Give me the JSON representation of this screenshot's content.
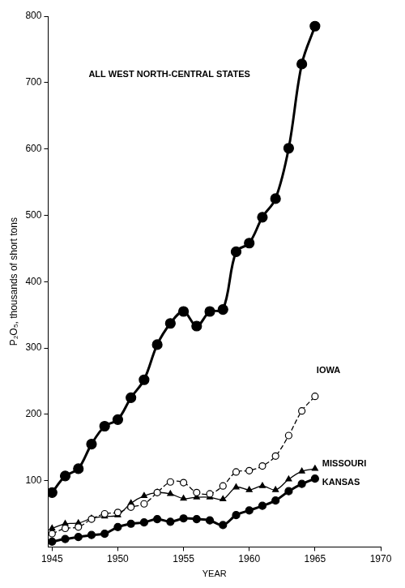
{
  "chart_data": {
    "type": "line",
    "x_label": "YEAR",
    "y_label": "P₂O₅, thousands of short tons",
    "x": [
      1945,
      1946,
      1947,
      1948,
      1949,
      1950,
      1951,
      1952,
      1953,
      1954,
      1955,
      1956,
      1957,
      1958,
      1959,
      1960,
      1961,
      1962,
      1963,
      1964,
      1965
    ],
    "series": [
      {
        "name": "ALL WEST NORTH-CENTRAL STATES",
        "color": "#000000",
        "marker": "circle",
        "line_style": "solid",
        "values": [
          82,
          107,
          118,
          155,
          182,
          192,
          225,
          252,
          305,
          337,
          355,
          333,
          355,
          358,
          445,
          458,
          497,
          525,
          601,
          728,
          785
        ]
      },
      {
        "name": "IOWA",
        "color": "#000000",
        "marker": "open_circle",
        "line_style": "dashed",
        "values": [
          20,
          28,
          30,
          42,
          50,
          52,
          60,
          65,
          82,
          98,
          97,
          82,
          80,
          92,
          113,
          115,
          122,
          137,
          168,
          205,
          227
        ]
      },
      {
        "name": "MISSOURI",
        "color": "#000000",
        "marker": "triangle",
        "line_style": "solid",
        "values": [
          28,
          35,
          36,
          43,
          46,
          48,
          66,
          77,
          82,
          80,
          73,
          75,
          75,
          72,
          90,
          86,
          92,
          86,
          102,
          114,
          118
        ]
      },
      {
        "name": "KANSAS",
        "color": "#000000",
        "marker": "circle",
        "line_style": "solid",
        "values": [
          8,
          12,
          15,
          18,
          20,
          30,
          35,
          37,
          42,
          38,
          43,
          42,
          40,
          33,
          48,
          55,
          62,
          70,
          84,
          95,
          103
        ]
      }
    ],
    "xlim": [
      1944.7,
      1970
    ],
    "xticks": [
      1945,
      1950,
      1955,
      1960,
      1965,
      1970
    ],
    "ylim": [
      0,
      800
    ],
    "yticks": [
      100,
      200,
      300,
      400,
      500,
      600,
      700,
      800
    ],
    "grid": false
  }
}
